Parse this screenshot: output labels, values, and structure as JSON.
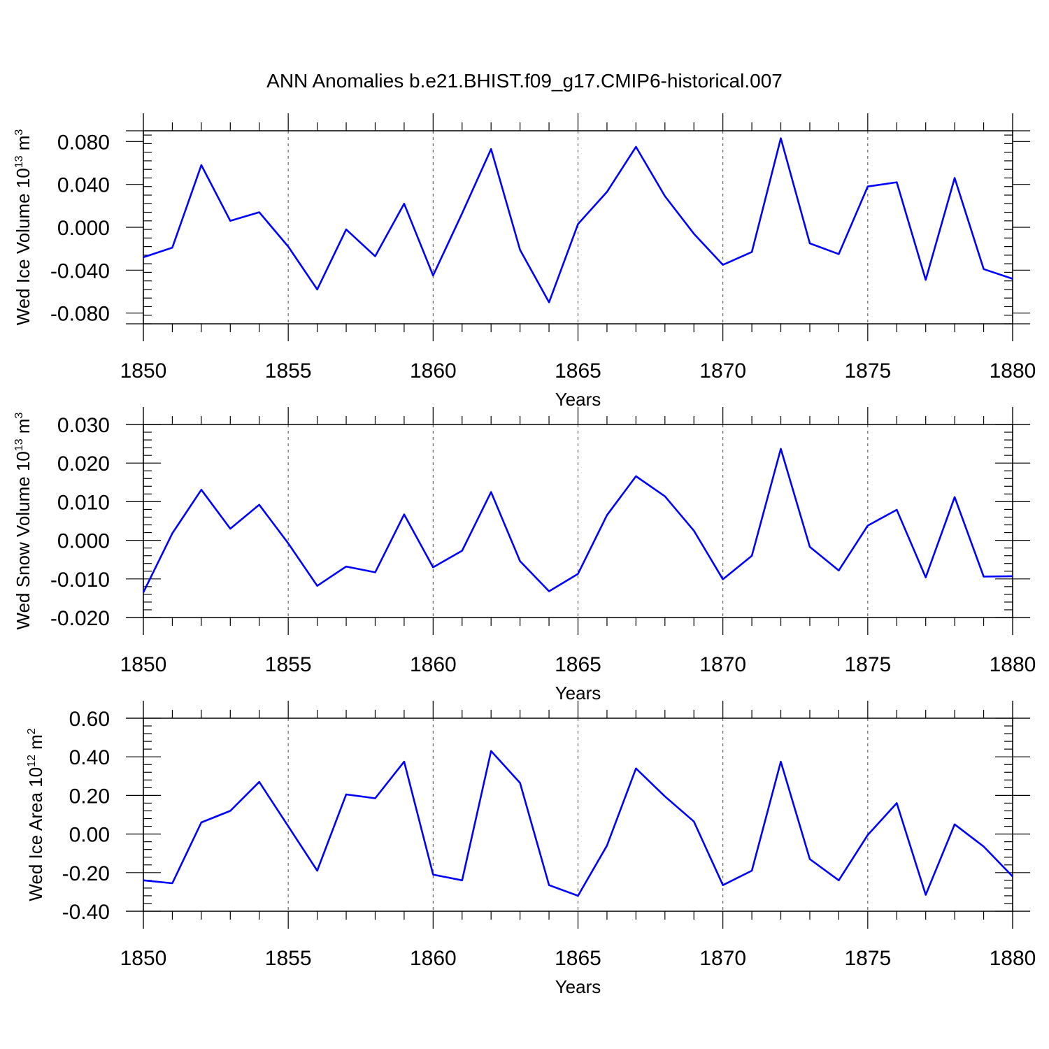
{
  "title": "ANN Anomalies b.e21.BHIST.f09_g17.CMIP6-historical.007",
  "line_color": "#0000ff",
  "chart_data": [
    {
      "type": "line",
      "ylabel": "Wed Ice Volume 10",
      "ylabel_exp": "13",
      "ylabel_unit": " m",
      "ylabel_unit_exp": "3",
      "xlabel": "Years",
      "xlim": [
        1850,
        1880
      ],
      "ylim": [
        -0.09,
        0.09
      ],
      "xticks": [
        1850,
        1855,
        1860,
        1865,
        1870,
        1875,
        1880
      ],
      "xtick_labels": [
        "1850",
        "1855",
        "1860",
        "1865",
        "1870",
        "1875",
        "1880"
      ],
      "yticks": [
        -0.08,
        -0.04,
        0.0,
        0.04,
        0.08
      ],
      "ytick_labels": [
        "-0.080",
        "-0.040",
        "0.000",
        "0.040",
        "0.080"
      ],
      "grid": "vertical dashed at labeled years",
      "x": [
        1850,
        1851,
        1852,
        1853,
        1854,
        1855,
        1856,
        1857,
        1858,
        1859,
        1860,
        1861,
        1862,
        1863,
        1864,
        1865,
        1866,
        1867,
        1868,
        1869,
        1870,
        1871,
        1872,
        1873,
        1874,
        1875,
        1876,
        1877,
        1878,
        1879,
        1880
      ],
      "values": [
        -0.028,
        -0.019,
        0.058,
        0.006,
        0.014,
        -0.018,
        -0.058,
        -0.002,
        -0.027,
        0.022,
        -0.045,
        0.013,
        0.073,
        -0.021,
        -0.07,
        0.003,
        0.033,
        0.075,
        0.029,
        -0.006,
        -0.035,
        -0.023,
        0.083,
        -0.015,
        -0.025,
        0.038,
        0.042,
        -0.049,
        0.046,
        -0.039,
        -0.048
      ]
    },
    {
      "type": "line",
      "ylabel": "Wed Snow Volume 10",
      "ylabel_exp": "13",
      "ylabel_unit": " m",
      "ylabel_unit_exp": "3",
      "xlabel": "Years",
      "xlim": [
        1850,
        1880
      ],
      "ylim": [
        -0.02,
        0.03
      ],
      "xticks": [
        1850,
        1855,
        1860,
        1865,
        1870,
        1875,
        1880
      ],
      "xtick_labels": [
        "1850",
        "1855",
        "1860",
        "1865",
        "1870",
        "1875",
        "1880"
      ],
      "yticks": [
        -0.02,
        -0.01,
        0.0,
        0.01,
        0.02,
        0.03
      ],
      "ytick_labels": [
        "-0.020",
        "-0.010",
        "0.000",
        "0.010",
        "0.020",
        "0.030"
      ],
      "grid": "vertical dashed at labeled years",
      "x": [
        1850,
        1851,
        1852,
        1853,
        1854,
        1855,
        1856,
        1857,
        1858,
        1859,
        1860,
        1861,
        1862,
        1863,
        1864,
        1865,
        1866,
        1867,
        1868,
        1869,
        1870,
        1871,
        1872,
        1873,
        1874,
        1875,
        1876,
        1877,
        1878,
        1879,
        1880
      ],
      "values": [
        -0.0135,
        0.0018,
        0.0131,
        0.003,
        0.0092,
        -0.0008,
        -0.0118,
        -0.0068,
        -0.0083,
        0.0067,
        -0.007,
        -0.0027,
        0.0125,
        -0.0054,
        -0.0132,
        -0.0087,
        0.0065,
        0.0166,
        0.0114,
        0.0025,
        -0.0101,
        -0.004,
        0.0237,
        -0.0017,
        -0.0078,
        0.0038,
        0.0079,
        -0.0096,
        0.0112,
        -0.0094,
        -0.0093
      ]
    },
    {
      "type": "line",
      "ylabel": "Wed Ice Area 10",
      "ylabel_exp": "12",
      "ylabel_unit": " m",
      "ylabel_unit_exp": "2",
      "xlabel": "Years",
      "xlim": [
        1850,
        1880
      ],
      "ylim": [
        -0.4,
        0.6
      ],
      "xticks": [
        1850,
        1855,
        1860,
        1865,
        1870,
        1875,
        1880
      ],
      "xtick_labels": [
        "1850",
        "1855",
        "1860",
        "1865",
        "1870",
        "1875",
        "1880"
      ],
      "yticks": [
        -0.4,
        -0.2,
        0.0,
        0.2,
        0.4,
        0.6
      ],
      "ytick_labels": [
        "-0.40",
        "-0.20",
        "0.00",
        "0.20",
        "0.40",
        "0.60"
      ],
      "grid": "vertical dashed at labeled years",
      "x": [
        1850,
        1851,
        1852,
        1853,
        1854,
        1855,
        1856,
        1857,
        1858,
        1859,
        1860,
        1861,
        1862,
        1863,
        1864,
        1865,
        1866,
        1867,
        1868,
        1869,
        1870,
        1871,
        1872,
        1873,
        1874,
        1875,
        1876,
        1877,
        1878,
        1879,
        1880
      ],
      "values": [
        -0.24,
        -0.255,
        0.06,
        0.12,
        0.27,
        0.04,
        -0.19,
        0.205,
        0.185,
        0.375,
        -0.21,
        -0.24,
        0.43,
        0.265,
        -0.265,
        -0.32,
        -0.06,
        0.34,
        0.195,
        0.065,
        -0.265,
        -0.19,
        0.375,
        -0.13,
        -0.24,
        -0.005,
        0.16,
        -0.315,
        0.05,
        -0.065,
        -0.22
      ]
    }
  ]
}
